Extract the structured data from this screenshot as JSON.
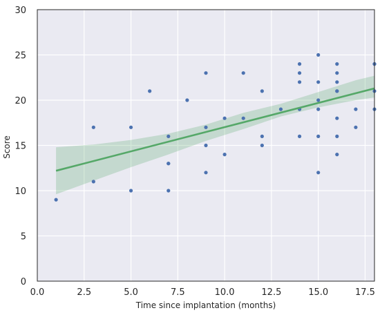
{
  "chart_data": {
    "type": "scatter",
    "title": "",
    "xlabel": "Time since implantation (months)",
    "ylabel": "Score",
    "xlim": [
      0.0,
      18.0
    ],
    "ylim": [
      0,
      30
    ],
    "x_ticks": [
      0.0,
      2.5,
      5.0,
      7.5,
      10.0,
      12.5,
      15.0,
      17.5
    ],
    "x_tick_labels": [
      "0.0",
      "2.5",
      "5.0",
      "7.5",
      "10.0",
      "12.5",
      "15.0",
      "17.5"
    ],
    "y_ticks": [
      0,
      5,
      10,
      15,
      20,
      25,
      30
    ],
    "y_tick_labels": [
      "0",
      "5",
      "10",
      "15",
      "20",
      "25",
      "30"
    ],
    "grid": true,
    "background_color": "#eaeaf2",
    "point_color": "#4c72b0",
    "fit_color": "#55a868",
    "band_color": "#55a868",
    "points": [
      {
        "x": 1,
        "y": 9
      },
      {
        "x": 3,
        "y": 17
      },
      {
        "x": 3,
        "y": 11
      },
      {
        "x": 5,
        "y": 17
      },
      {
        "x": 5,
        "y": 10
      },
      {
        "x": 6,
        "y": 21
      },
      {
        "x": 7,
        "y": 16
      },
      {
        "x": 7,
        "y": 13
      },
      {
        "x": 7,
        "y": 13
      },
      {
        "x": 7,
        "y": 10
      },
      {
        "x": 8,
        "y": 20
      },
      {
        "x": 9,
        "y": 23
      },
      {
        "x": 9,
        "y": 17
      },
      {
        "x": 9,
        "y": 15
      },
      {
        "x": 9,
        "y": 12
      },
      {
        "x": 10,
        "y": 18
      },
      {
        "x": 10,
        "y": 14
      },
      {
        "x": 11,
        "y": 23
      },
      {
        "x": 11,
        "y": 18
      },
      {
        "x": 12,
        "y": 21
      },
      {
        "x": 12,
        "y": 16
      },
      {
        "x": 12,
        "y": 15
      },
      {
        "x": 13,
        "y": 19
      },
      {
        "x": 14,
        "y": 24
      },
      {
        "x": 14,
        "y": 23
      },
      {
        "x": 14,
        "y": 22
      },
      {
        "x": 14,
        "y": 19
      },
      {
        "x": 14,
        "y": 16
      },
      {
        "x": 15,
        "y": 25
      },
      {
        "x": 15,
        "y": 22
      },
      {
        "x": 15,
        "y": 20
      },
      {
        "x": 15,
        "y": 19
      },
      {
        "x": 15,
        "y": 16
      },
      {
        "x": 15,
        "y": 12
      },
      {
        "x": 16,
        "y": 24
      },
      {
        "x": 16,
        "y": 23
      },
      {
        "x": 16,
        "y": 22
      },
      {
        "x": 16,
        "y": 21
      },
      {
        "x": 16,
        "y": 21
      },
      {
        "x": 16,
        "y": 18
      },
      {
        "x": 16,
        "y": 16
      },
      {
        "x": 16,
        "y": 14
      },
      {
        "x": 17,
        "y": 19
      },
      {
        "x": 17,
        "y": 17
      },
      {
        "x": 18,
        "y": 24
      },
      {
        "x": 18,
        "y": 24
      },
      {
        "x": 18,
        "y": 21
      },
      {
        "x": 18,
        "y": 19
      }
    ],
    "fit_line": {
      "x": [
        1,
        18
      ],
      "y": [
        12.2,
        21.3
      ]
    },
    "confidence_band": {
      "x": [
        1,
        3,
        5,
        7,
        9,
        11,
        13,
        15,
        17,
        18
      ],
      "lower": [
        9.6,
        11.1,
        12.6,
        14.0,
        15.5,
        16.8,
        18.2,
        19.2,
        20.0,
        20.3
      ],
      "upper": [
        14.8,
        15.1,
        15.6,
        16.3,
        17.3,
        18.6,
        19.6,
        20.9,
        22.2,
        22.7
      ]
    }
  }
}
